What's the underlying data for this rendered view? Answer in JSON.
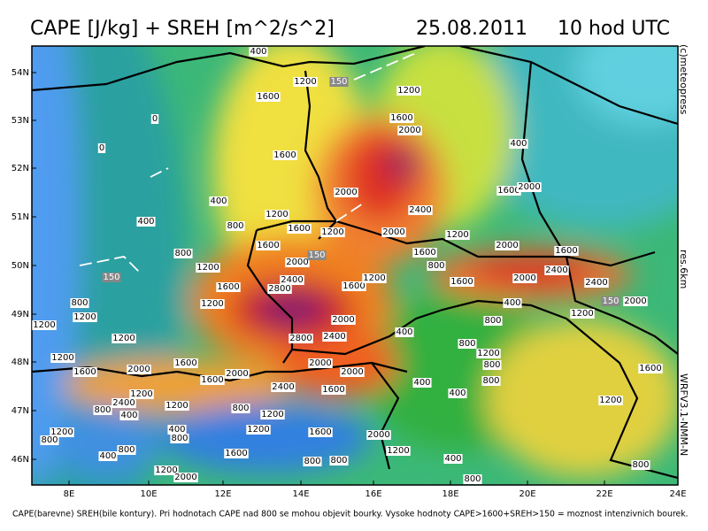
{
  "header": {
    "title": "CAPE [J/kg] + SREH [m^2/s^2]",
    "date": "25.08.2011",
    "time": "10 hod UTC"
  },
  "map": {
    "lat_ticks": [
      "54N",
      "53N",
      "52N",
      "51N",
      "50N",
      "49N",
      "48N",
      "47N",
      "46N"
    ],
    "lon_ticks": [
      "8E",
      "10E",
      "12E",
      "14E",
      "16E",
      "18E",
      "20E",
      "22E",
      "24E"
    ],
    "cape_labels": [
      400,
      1200,
      1600,
      1200,
      0,
      1600,
      2000,
      400,
      0,
      1600,
      2000,
      1600,
      2000,
      400,
      1200,
      2400,
      400,
      800,
      1600,
      1200,
      2000,
      1200,
      1600,
      2000,
      1600,
      800,
      1600,
      2000,
      1200,
      800,
      2400,
      2400,
      2800,
      1600,
      1600,
      1200,
      1600,
      2000,
      2400,
      400,
      1200,
      800,
      2000,
      1200,
      2000,
      800,
      1200,
      1200,
      400,
      2800,
      2400,
      1200,
      800,
      1200,
      1600,
      2000,
      1200,
      800,
      1600,
      2000,
      2000,
      2000,
      1600,
      800,
      1600,
      400,
      2400,
      1600,
      1200,
      400,
      2400,
      1200,
      800,
      1200,
      1200,
      800,
      400,
      1200,
      400,
      1200,
      1600,
      2000,
      800,
      800,
      1200,
      1600,
      800,
      400,
      400,
      800,
      800,
      1200,
      2000,
      800,
      800
    ],
    "sreh_labels": [
      150,
      150,
      150,
      150
    ]
  },
  "side": {
    "copyright": "(c)meteopress",
    "resolution": "res.6km",
    "model": "WRFV3.1-NMM-N"
  },
  "footer": {
    "note": "CAPE(barevne) SREH(bile kontury). Pri hodnotach CAPE nad 800 se mohou objevit bourky. Vysoke hodnoty CAPE>1600+SREH>150 = moznost intenzivnich bourek."
  }
}
